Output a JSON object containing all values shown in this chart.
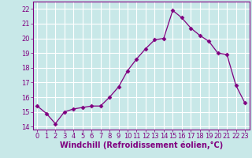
{
  "x": [
    0,
    1,
    2,
    3,
    4,
    5,
    6,
    7,
    8,
    9,
    10,
    11,
    12,
    13,
    14,
    15,
    16,
    17,
    18,
    19,
    20,
    21,
    22,
    23
  ],
  "y": [
    15.4,
    14.9,
    14.2,
    15.0,
    15.2,
    15.3,
    15.4,
    15.4,
    16.0,
    16.7,
    17.8,
    18.6,
    19.3,
    19.9,
    20.0,
    21.9,
    21.4,
    20.7,
    20.2,
    19.8,
    19.0,
    18.9,
    16.8,
    15.6
  ],
  "line_color": "#800080",
  "marker": "D",
  "marker_size": 2.5,
  "bg_color": "#c8e8e8",
  "grid_color": "#ffffff",
  "xlabel": "Windchill (Refroidissement éolien,°C)",
  "ylim": [
    13.8,
    22.5
  ],
  "xlim": [
    -0.5,
    23.5
  ],
  "yticks": [
    14,
    15,
    16,
    17,
    18,
    19,
    20,
    21,
    22
  ],
  "xticks": [
    0,
    1,
    2,
    3,
    4,
    5,
    6,
    7,
    8,
    9,
    10,
    11,
    12,
    13,
    14,
    15,
    16,
    17,
    18,
    19,
    20,
    21,
    22,
    23
  ],
  "tick_label_fontsize": 6.0,
  "xlabel_fontsize": 7.0,
  "spine_color": "#800080",
  "linewidth": 0.9
}
